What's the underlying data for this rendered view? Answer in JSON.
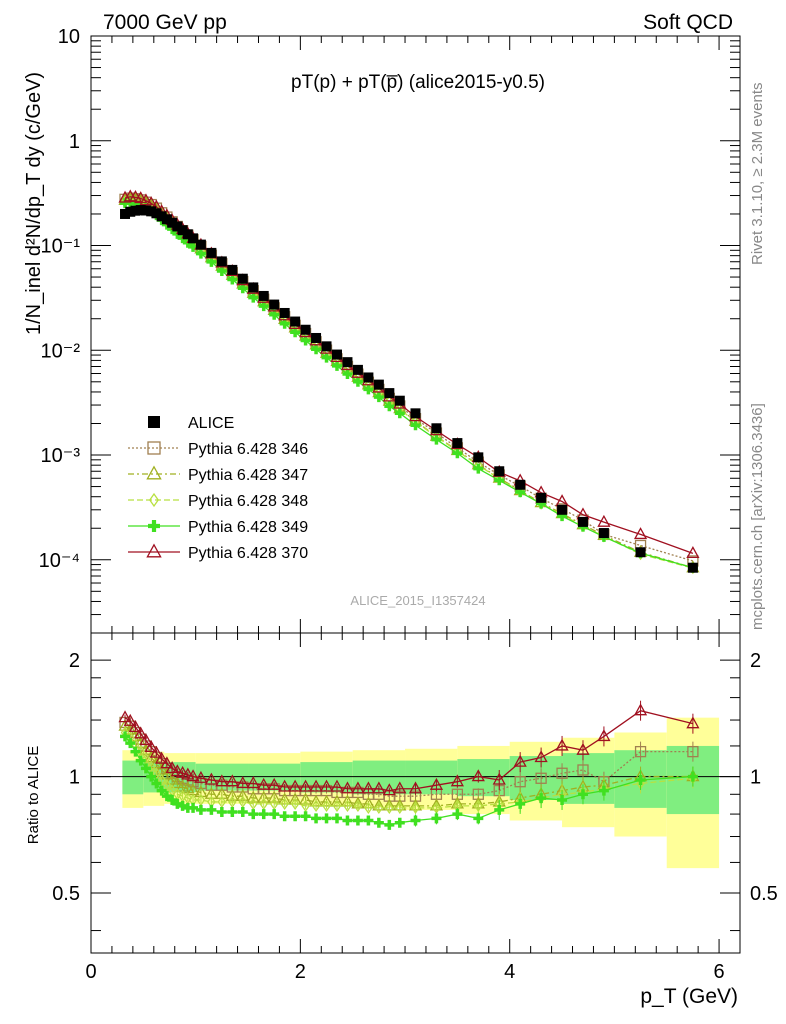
{
  "header": {
    "left": "7000 GeV pp",
    "right": "Soft QCD"
  },
  "side_text": {
    "rivet": "Rivet 3.1.10, ≥ 2.3M events",
    "mcplots": "mcplots.cern.ch [arXiv:1306.3436]"
  },
  "chart_data": [
    {
      "type": "scatter",
      "title": "pT(p) + pT(p̅) (alice2015-y0.5)",
      "ylabel": "1/N_inel d²N/dp_T dy (c/GeV)",
      "xlabel": "p_T (GeV)",
      "xlim": [
        0,
        6.2
      ],
      "ylim": [
        2e-05,
        10
      ],
      "yscale": "log",
      "watermark": "ALICE_2015_I1357424",
      "legend_position": "center-left",
      "x_ticks": [
        "0",
        "2",
        "4",
        "6"
      ],
      "y_ticks": [
        "10",
        "1",
        "10⁻¹",
        "10⁻²",
        "10⁻³",
        "10⁻⁴"
      ],
      "x": [
        0.325,
        0.375,
        0.425,
        0.475,
        0.525,
        0.575,
        0.625,
        0.675,
        0.725,
        0.775,
        0.825,
        0.875,
        0.925,
        0.975,
        1.05,
        1.15,
        1.25,
        1.35,
        1.45,
        1.55,
        1.65,
        1.75,
        1.85,
        1.95,
        2.05,
        2.15,
        2.25,
        2.35,
        2.45,
        2.55,
        2.65,
        2.75,
        2.85,
        2.95,
        3.1,
        3.3,
        3.5,
        3.7,
        3.9,
        4.1,
        4.3,
        4.5,
        4.7,
        4.9,
        5.25,
        5.75
      ],
      "series": [
        {
          "name": "ALICE",
          "color": "#000000",
          "marker": "filled-square",
          "values": [
            0.2,
            0.21,
            0.215,
            0.218,
            0.216,
            0.212,
            0.203,
            0.19,
            0.178,
            0.165,
            0.152,
            0.14,
            0.128,
            0.117,
            0.102,
            0.085,
            0.0705,
            0.0585,
            0.0482,
            0.0398,
            0.033,
            0.0273,
            0.0227,
            0.0188,
            0.0157,
            0.0131,
            0.0109,
            0.0091,
            0.0077,
            0.0065,
            0.0055,
            0.0047,
            0.0039,
            0.0033,
            0.0025,
            0.0018,
            0.0013,
            0.00095,
            0.0007,
            0.00052,
            0.00039,
            0.0003,
            0.00023,
            0.00018,
            0.000118,
            8.4e-05
          ]
        },
        {
          "name": "Pythia 6.428 346",
          "color": "#a08050",
          "marker": "open-square",
          "dash": "2,2",
          "ratio": [
            1.38,
            1.35,
            1.3,
            1.25,
            1.2,
            1.16,
            1.12,
            1.08,
            1.05,
            1.02,
            1.0,
            0.99,
            0.98,
            0.97,
            0.96,
            0.95,
            0.95,
            0.94,
            0.94,
            0.93,
            0.93,
            0.93,
            0.92,
            0.92,
            0.92,
            0.92,
            0.92,
            0.91,
            0.91,
            0.91,
            0.9,
            0.9,
            0.89,
            0.89,
            0.89,
            0.9,
            0.9,
            0.9,
            0.92,
            0.97,
            0.99,
            1.02,
            1.04,
            0.97,
            1.16,
            1.16
          ]
        },
        {
          "name": "Pythia 6.428 347",
          "color": "#a0b020",
          "marker": "open-triangle",
          "dash": "6,3,2,3",
          "ratio": [
            1.35,
            1.32,
            1.27,
            1.22,
            1.17,
            1.12,
            1.08,
            1.04,
            1.01,
            0.98,
            0.96,
            0.94,
            0.93,
            0.92,
            0.91,
            0.9,
            0.9,
            0.89,
            0.89,
            0.88,
            0.88,
            0.88,
            0.87,
            0.87,
            0.87,
            0.86,
            0.86,
            0.86,
            0.86,
            0.85,
            0.85,
            0.84,
            0.84,
            0.84,
            0.84,
            0.84,
            0.85,
            0.85,
            0.86,
            0.88,
            0.9,
            0.92,
            0.94,
            0.95,
            1.0,
            1.0
          ]
        },
        {
          "name": "Pythia 6.428 348",
          "color": "#b8e040",
          "marker": "open-diamond",
          "dash": "6,3",
          "ratio": [
            1.3,
            1.26,
            1.21,
            1.16,
            1.11,
            1.06,
            1.02,
            0.98,
            0.95,
            0.92,
            0.9,
            0.89,
            0.88,
            0.87,
            0.87,
            0.86,
            0.86,
            0.86,
            0.86,
            0.85,
            0.85,
            0.85,
            0.85,
            0.85,
            0.84,
            0.84,
            0.84,
            0.84,
            0.84,
            0.84,
            0.83,
            0.83,
            0.83,
            0.83,
            0.83,
            0.83,
            0.84,
            0.84,
            0.85,
            0.86,
            0.88,
            0.9,
            0.91,
            0.93,
            0.96,
            0.99
          ]
        },
        {
          "name": "Pythia 6.428 349",
          "color": "#40e020",
          "marker": "filled-cross",
          "dash": "",
          "ratio": [
            1.27,
            1.22,
            1.16,
            1.1,
            1.05,
            1.0,
            0.96,
            0.92,
            0.89,
            0.87,
            0.85,
            0.84,
            0.83,
            0.83,
            0.82,
            0.82,
            0.81,
            0.81,
            0.81,
            0.8,
            0.8,
            0.8,
            0.79,
            0.79,
            0.79,
            0.78,
            0.78,
            0.78,
            0.77,
            0.77,
            0.77,
            0.76,
            0.75,
            0.76,
            0.77,
            0.78,
            0.8,
            0.78,
            0.82,
            0.85,
            0.88,
            0.87,
            0.9,
            0.92,
            0.98,
            1.0
          ]
        },
        {
          "name": "Pythia 6.428 370",
          "color": "#a01020",
          "marker": "open-triangle",
          "dash": "",
          "ratio": [
            1.42,
            1.39,
            1.34,
            1.29,
            1.24,
            1.19,
            1.15,
            1.11,
            1.08,
            1.05,
            1.03,
            1.02,
            1.01,
            1.0,
            0.99,
            0.98,
            0.97,
            0.97,
            0.96,
            0.96,
            0.95,
            0.95,
            0.94,
            0.94,
            0.94,
            0.94,
            0.94,
            0.94,
            0.93,
            0.93,
            0.93,
            0.93,
            0.92,
            0.93,
            0.93,
            0.95,
            0.97,
            1.0,
            0.98,
            1.09,
            1.12,
            1.2,
            1.17,
            1.27,
            1.48,
            1.37
          ]
        }
      ]
    },
    {
      "type": "scatter",
      "ylabel": "Ratio to ALICE",
      "xlabel": "p_T (GeV)",
      "xlim": [
        0,
        6.2
      ],
      "ylim": [
        0.35,
        2.35
      ],
      "yscale": "log",
      "y_ticks": [
        "0.5",
        "1",
        "2"
      ],
      "bands": {
        "stat_syst_outer_color": "#ffff99",
        "stat_inner_color": "#80ee80",
        "x_edges": [
          0.3,
          0.5,
          0.7,
          1.0,
          1.5,
          2.0,
          2.5,
          3.0,
          3.5,
          4.0,
          4.5,
          5.0,
          5.5,
          6.0
        ],
        "outer_half_width": [
          0.17,
          0.16,
          0.15,
          0.15,
          0.15,
          0.16,
          0.17,
          0.18,
          0.2,
          0.23,
          0.26,
          0.3,
          0.42
        ],
        "inner_half_width": [
          0.1,
          0.09,
          0.09,
          0.08,
          0.08,
          0.09,
          0.1,
          0.1,
          0.11,
          0.13,
          0.15,
          0.17,
          0.2
        ]
      }
    }
  ]
}
